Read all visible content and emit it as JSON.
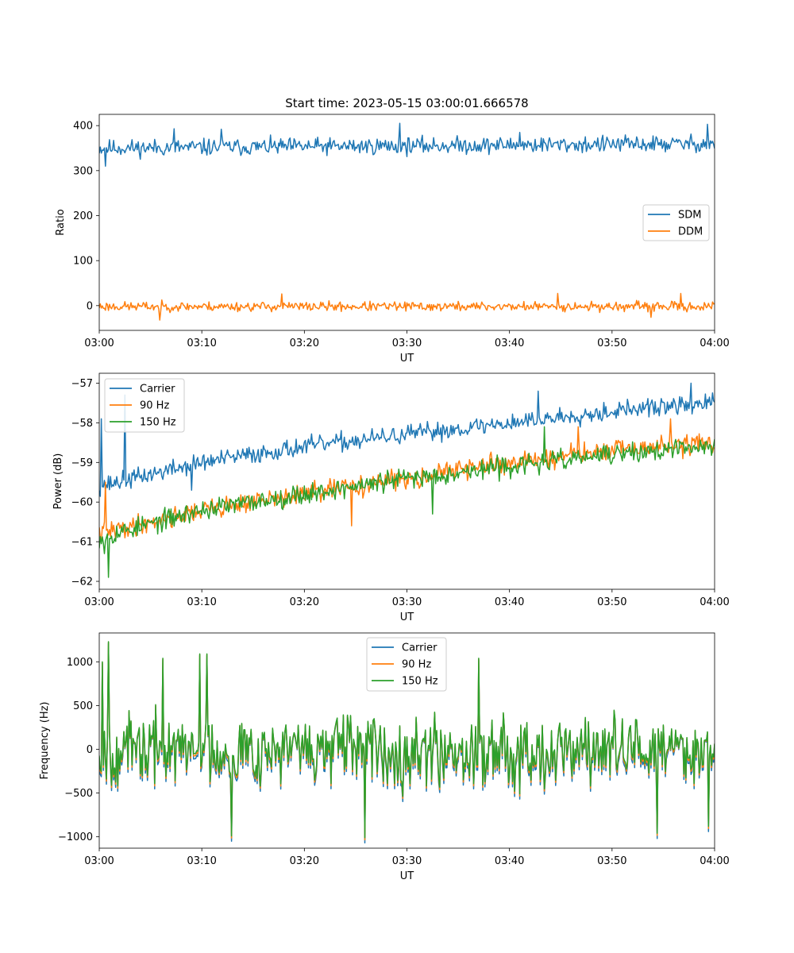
{
  "chart_data": [
    {
      "type": "line",
      "title": "Start time: 2023-05-15 03:00:01.666578",
      "xlabel": "UT",
      "ylabel": "Ratio",
      "x_range": [
        "03:00",
        "04:00"
      ],
      "ylim": [
        -55,
        425
      ],
      "x_ticks": [
        "03:00",
        "03:10",
        "03:20",
        "03:30",
        "03:40",
        "03:50",
        "04:00"
      ],
      "y_ticks": [
        400,
        300,
        200,
        100,
        0
      ],
      "y_tick_labels": [
        "400",
        "300",
        "200",
        "100",
        "0"
      ],
      "legend": "center-right",
      "grid": false,
      "series": [
        {
          "name": "SDM",
          "color": "#1f77b4",
          "trend": [
            [
              0,
              350
            ],
            [
              60,
              360
            ]
          ],
          "noise": 16,
          "spikes": [
            [
              0.6,
              310
            ],
            [
              7.3,
              393
            ],
            [
              11.9,
              392
            ],
            [
              29.3,
              405
            ],
            [
              41.0,
              385
            ],
            [
              59.3,
              403
            ]
          ],
          "seed": 11
        },
        {
          "name": "DDM",
          "color": "#ff7f0e",
          "trend": [
            [
              0,
              -2
            ],
            [
              60,
              -2
            ]
          ],
          "noise": 9,
          "spikes": [
            [
              5.9,
              -32
            ],
            [
              17.8,
              26
            ],
            [
              44.7,
              27
            ],
            [
              56.7,
              27
            ],
            [
              53.8,
              -26
            ]
          ],
          "seed": 23
        }
      ]
    },
    {
      "type": "line",
      "title": "",
      "xlabel": "UT",
      "ylabel": "Power (dB)",
      "x_range": [
        "03:00",
        "04:00"
      ],
      "ylim": [
        -62.2,
        -56.75
      ],
      "x_ticks": [
        "03:00",
        "03:10",
        "03:20",
        "03:30",
        "03:40",
        "03:50",
        "04:00"
      ],
      "y_ticks": [
        -57,
        -58,
        -59,
        -60,
        -61,
        -62
      ],
      "y_tick_labels": [
        "−57",
        "−58",
        "−59",
        "−60",
        "−61",
        "−62"
      ],
      "legend": "top-left",
      "grid": false,
      "series": [
        {
          "name": "Carrier",
          "color": "#1f77b4",
          "trend": [
            [
              0,
              -59.6
            ],
            [
              10,
              -59.0
            ],
            [
              20,
              -58.6
            ],
            [
              30,
              -58.3
            ],
            [
              40,
              -58.0
            ],
            [
              50,
              -57.7
            ],
            [
              60,
              -57.5
            ]
          ],
          "noise": 0.2,
          "spikes": [
            [
              0.2,
              -57.9
            ],
            [
              2.5,
              -57.3
            ],
            [
              9.0,
              -59.7
            ],
            [
              42.8,
              -57.2
            ],
            [
              57.7,
              -57.0
            ]
          ],
          "seed": 37
        },
        {
          "name": "90 Hz",
          "color": "#ff7f0e",
          "trend": [
            [
              0,
              -60.8
            ],
            [
              10,
              -60.2
            ],
            [
              20,
              -59.8
            ],
            [
              30,
              -59.4
            ],
            [
              40,
              -59.0
            ],
            [
              50,
              -58.7
            ],
            [
              60,
              -58.5
            ]
          ],
          "noise": 0.22,
          "spikes": [
            [
              0.6,
              -59.5
            ],
            [
              24.6,
              -60.6
            ],
            [
              46.7,
              -58.1
            ],
            [
              55.7,
              -57.9
            ]
          ],
          "seed": 41
        },
        {
          "name": "150 Hz",
          "color": "#2ca02c",
          "trend": [
            [
              0,
              -60.9
            ],
            [
              10,
              -60.2
            ],
            [
              20,
              -59.8
            ],
            [
              30,
              -59.4
            ],
            [
              40,
              -59.1
            ],
            [
              50,
              -58.8
            ],
            [
              60,
              -58.6
            ]
          ],
          "noise": 0.22,
          "spikes": [
            [
              0.9,
              -61.9
            ],
            [
              0.5,
              -61.3
            ],
            [
              32.5,
              -60.3
            ],
            [
              43.4,
              -58.1
            ]
          ],
          "seed": 53
        }
      ]
    },
    {
      "type": "line",
      "title": "",
      "xlabel": "UT",
      "ylabel": "Frequency (Hz)",
      "x_range": [
        "03:00",
        "04:00"
      ],
      "ylim": [
        -1130,
        1330
      ],
      "x_ticks": [
        "03:00",
        "03:10",
        "03:20",
        "03:30",
        "03:40",
        "03:50",
        "04:00"
      ],
      "y_ticks": [
        1000,
        500,
        0,
        -500,
        -1000
      ],
      "y_tick_labels": [
        "1000",
        "500",
        "0",
        "−500",
        "−1000"
      ],
      "legend": "upper-center",
      "grid": false,
      "series": [
        {
          "name": "Carrier",
          "color": "#1f77b4",
          "offset": -60
        },
        {
          "name": "90 Hz",
          "color": "#ff7f0e",
          "offset": -25
        },
        {
          "name": "150 Hz",
          "color": "#2ca02c",
          "offset": 0
        }
      ],
      "base": {
        "trend": [
          [
            0,
            0
          ],
          [
            60,
            0
          ]
        ],
        "noise": 330,
        "spikes": [
          [
            0.3,
            1000
          ],
          [
            0.9,
            1230
          ],
          [
            6.2,
            1040
          ],
          [
            9.8,
            1090
          ],
          [
            10.5,
            1090
          ],
          [
            12.9,
            -990
          ],
          [
            25.9,
            -1010
          ],
          [
            37.0,
            1040
          ],
          [
            54.4,
            -960
          ],
          [
            59.4,
            -880
          ]
        ],
        "seed": 67
      }
    }
  ]
}
